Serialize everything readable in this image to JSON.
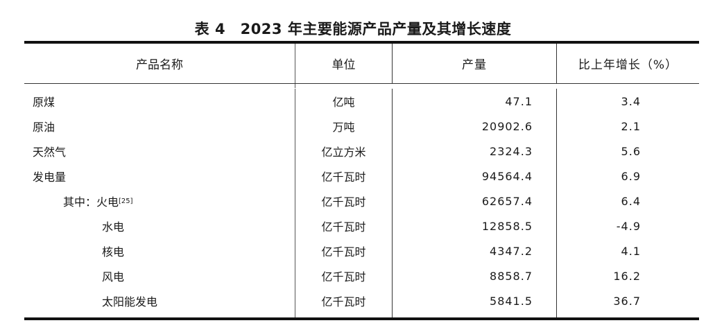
{
  "title": "表 4　2023 年主要能源产品产量及其增长速度",
  "headers": [
    "产品名称",
    "单位",
    "产量",
    "比上年增长（%）"
  ],
  "rows": [
    {
      "name": "原煤",
      "unit": "亿吨",
      "output": "47.1",
      "growth": "3.4"
    },
    {
      "name": "原油",
      "unit": "万吨",
      "output": "20902.6",
      "growth": "2.1"
    },
    {
      "name": "天然气",
      "unit": "亿立方米",
      "output": "2324.3",
      "growth": "5.6"
    },
    {
      "name": "发电量",
      "unit": "亿千瓦时",
      "output": "94564.4",
      "growth": "6.9"
    },
    {
      "prefix": "其中：",
      "name": "火电",
      "footnote": "[25]",
      "unit": "亿千瓦时",
      "output": "62657.4",
      "growth": "6.4"
    },
    {
      "name": "水电",
      "unit": "亿千瓦时",
      "output": "12858.5",
      "growth": "-4.9"
    },
    {
      "name": "核电",
      "unit": "亿千瓦时",
      "output": "4347.2",
      "growth": "4.1"
    },
    {
      "name": "风电",
      "unit": "亿千瓦时",
      "output": "8858.7",
      "growth": "16.2"
    },
    {
      "name": "太阳能发电",
      "unit": "亿千瓦时",
      "output": "5841.5",
      "growth": "36.7"
    }
  ]
}
